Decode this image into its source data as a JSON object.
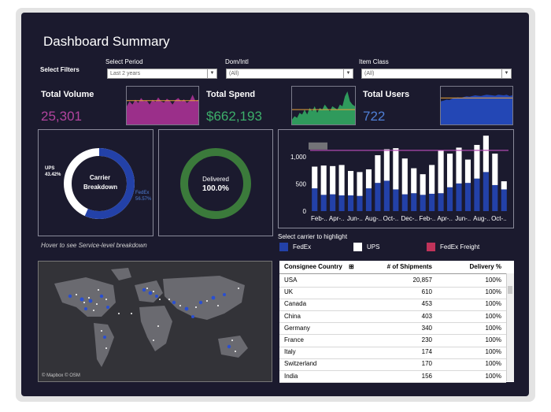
{
  "header": {
    "title": "Dashboard Summary"
  },
  "filters": {
    "label": "Select Filters",
    "period": {
      "label": "Select Period",
      "value": "Last 2 years"
    },
    "domintl": {
      "label": "Dom/Intl",
      "value": "(All)"
    },
    "itemclass": {
      "label": "Item Class",
      "value": "(All)"
    }
  },
  "kpis": {
    "volume": {
      "label": "Total Volume",
      "value": "25,301",
      "color": "#b2449e"
    },
    "spend": {
      "label": "Total Spend",
      "value": "$662,193",
      "color": "#3dae6a"
    },
    "users": {
      "label": "Total Users",
      "value": "722",
      "color": "#4f7fd6"
    }
  },
  "donut_carrier": {
    "center_line1": "Carrier",
    "center_line2": "Breakdown",
    "ups_label": "UPS",
    "ups_pct": "43.42%",
    "fedex_label": "FedEx",
    "fedex_pct": "56.57%",
    "fedex_share": 0.5657,
    "ups_share": 0.4342,
    "fedex_color": "#2341a8",
    "ups_color": "#ffffff"
  },
  "hover_note": "Hover to see Service-level breakdown",
  "donut_delivered": {
    "label": "Delivered",
    "value": "100.0%",
    "ratio": 1.0,
    "color": "#3b7a3b"
  },
  "chart_data": {
    "type": "bar",
    "categories": [
      "Feb-..",
      "",
      "Apr-..",
      "",
      "Jun-..",
      "",
      "Aug-..",
      "",
      "Oct-..",
      "",
      "Dec-..",
      "",
      "Feb-..",
      "",
      "Apr-..",
      "",
      "Jun-..",
      "",
      "Aug-..",
      "",
      "Oct-..",
      ""
    ],
    "x_tick_labels": [
      "Feb-..",
      "Apr-..",
      "Jun-..",
      "Aug-..",
      "Oct-..",
      "Dec-..",
      "Feb-..",
      "Apr-..",
      "Jun-..",
      "Aug-..",
      "Oct-.."
    ],
    "series": [
      {
        "name": "FedEx",
        "color": "#2341a8",
        "values": [
          420,
          300,
          310,
          290,
          290,
          280,
          420,
          520,
          560,
          400,
          310,
          330,
          300,
          320,
          330,
          440,
          510,
          520,
          600,
          720,
          480,
          400
        ]
      },
      {
        "name": "UPS",
        "color": "#ffffff",
        "values": [
          400,
          540,
          520,
          560,
          450,
          440,
          350,
          510,
          580,
          760,
          660,
          460,
          380,
          530,
          790,
          620,
          660,
          430,
          620,
          670,
          580,
          150
        ]
      }
    ],
    "reference_line": 1120,
    "reference_color": "#b04ab0",
    "yticks": [
      0,
      500,
      "1,000"
    ],
    "ylim": [
      0,
      1350
    ]
  },
  "carrier_legend": {
    "title": "Select carrier to highlight",
    "items": [
      {
        "label": "FedEx",
        "color": "#2341a8"
      },
      {
        "label": "UPS",
        "color": "#ffffff"
      },
      {
        "label": "FedEx Freight",
        "color": "#c0335a"
      }
    ]
  },
  "map": {
    "credit": "© Mapbox © OSM"
  },
  "table": {
    "headers": [
      "Consignee Country",
      "# of Shipments",
      "Delivery %"
    ],
    "rows": [
      [
        "USA",
        "20,857",
        "100%"
      ],
      [
        "UK",
        "610",
        "100%"
      ],
      [
        "Canada",
        "453",
        "100%"
      ],
      [
        "China",
        "403",
        "100%"
      ],
      [
        "Germany",
        "340",
        "100%"
      ],
      [
        "France",
        "230",
        "100%"
      ],
      [
        "Italy",
        "174",
        "100%"
      ],
      [
        "Switzerland",
        "170",
        "100%"
      ],
      [
        "India",
        "156",
        "100%"
      ]
    ]
  },
  "sparklines": {
    "volume": {
      "color": "#9b2f8a",
      "values": [
        0.55,
        0.7,
        0.6,
        0.75,
        0.65,
        0.8,
        0.7,
        0.72,
        0.6,
        0.75,
        0.68,
        0.82,
        0.7,
        0.66,
        0.78,
        0.72,
        0.6,
        0.74,
        0.8,
        0.7,
        0.76,
        0.65,
        0.72,
        0.9,
        0.7,
        0.75
      ]
    },
    "spend": {
      "color": "#2f9a5c",
      "values": [
        0.15,
        0.25,
        0.2,
        0.35,
        0.3,
        0.45,
        0.3,
        0.5,
        0.4,
        0.55,
        0.35,
        0.5,
        0.45,
        0.6,
        0.5,
        0.4,
        0.55,
        0.5,
        0.45,
        0.6,
        0.55,
        0.85,
        1.0,
        0.7,
        0.6,
        0.55
      ]
    },
    "users": {
      "color": "#2347b5",
      "values": [
        0.7,
        0.72,
        0.75,
        0.74,
        0.78,
        0.8,
        0.82,
        0.8,
        0.83,
        0.85,
        0.84,
        0.86,
        0.88,
        0.87,
        0.86,
        0.88,
        0.9,
        0.89,
        0.88,
        0.87,
        0.9,
        0.89,
        0.88,
        0.9,
        0.86,
        0.88
      ]
    }
  }
}
